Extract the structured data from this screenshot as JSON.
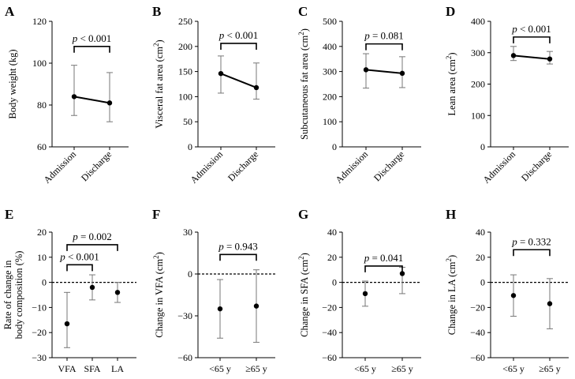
{
  "chart_data": [
    {
      "panel": "A",
      "type": "line",
      "ylabel": "Body weight (kg)",
      "ylabel_sup": "",
      "ylim": [
        60,
        120
      ],
      "yticks": [
        60,
        80,
        100,
        120
      ],
      "categories": [
        "Admission",
        "Discharge"
      ],
      "values": [
        84,
        81
      ],
      "error_low": [
        75,
        72
      ],
      "error_high": [
        99,
        95.5
      ],
      "zero_line": false,
      "comparisons": [
        {
          "from": 0,
          "to": 1,
          "p_label": "p",
          "p_value": " < 0.001",
          "level": 108
        }
      ]
    },
    {
      "panel": "B",
      "type": "line",
      "ylabel": "Visceral fat area (cm",
      "ylabel_sup": "2",
      "ylim": [
        0,
        250
      ],
      "yticks": [
        0,
        50,
        100,
        150,
        200,
        250
      ],
      "categories": [
        "Admission",
        "Discharge"
      ],
      "values": [
        146,
        118
      ],
      "error_low": [
        107,
        95
      ],
      "error_high": [
        181,
        167
      ],
      "zero_line": false,
      "comparisons": [
        {
          "from": 0,
          "to": 1,
          "p_label": "p",
          "p_value": " < 0.001",
          "level": 206
        }
      ]
    },
    {
      "panel": "C",
      "type": "line",
      "ylabel": "Subcutaneous fat area (cm",
      "ylabel_sup": "2",
      "ylim": [
        0,
        500
      ],
      "yticks": [
        0,
        100,
        200,
        300,
        400,
        500
      ],
      "categories": [
        "Admission",
        "Discharge"
      ],
      "values": [
        307,
        293
      ],
      "error_low": [
        234,
        236
      ],
      "error_high": [
        371,
        359
      ],
      "zero_line": false,
      "comparisons": [
        {
          "from": 0,
          "to": 1,
          "p_label": "p",
          "p_value": " = 0.081",
          "level": 410
        }
      ]
    },
    {
      "panel": "D",
      "type": "line",
      "ylabel": "Lean area (cm",
      "ylabel_sup": "2",
      "ylim": [
        0,
        400
      ],
      "yticks": [
        0,
        100,
        200,
        300,
        400
      ],
      "categories": [
        "Admission",
        "Discharge"
      ],
      "values": [
        291,
        280
      ],
      "error_low": [
        275,
        264
      ],
      "error_high": [
        320,
        304
      ],
      "zero_line": false,
      "comparisons": [
        {
          "from": 0,
          "to": 1,
          "p_label": "p",
          "p_value": " < 0.001",
          "level": 350
        }
      ]
    },
    {
      "panel": "E",
      "type": "scatter",
      "ylabel": "Rate of change in",
      "ylabel2": "body composition (%)",
      "ylabel_sup": "",
      "ylim": [
        -30,
        20
      ],
      "yticks": [
        -30,
        -20,
        -10,
        0,
        10,
        20
      ],
      "categories": [
        "VFA",
        "SFA",
        "LA"
      ],
      "values": [
        -16.5,
        -2,
        -4
      ],
      "error_low": [
        -26,
        -7,
        -8
      ],
      "error_high": [
        -4,
        3,
        0
      ],
      "zero_line": true,
      "comparisons": [
        {
          "from": 0,
          "to": 1,
          "p_label": "p",
          "p_value": " < 0.001",
          "level": 7
        },
        {
          "from": 0,
          "to": 2,
          "p_label": "p",
          "p_value": " = 0.002",
          "level": 15
        }
      ]
    },
    {
      "panel": "F",
      "type": "scatter",
      "ylabel": "Change in VFA (cm",
      "ylabel_sup": "2",
      "ylim": [
        -60,
        30
      ],
      "yticks": [
        -60,
        -30,
        0,
        30
      ],
      "categories": [
        "<65 y",
        "≥65 y"
      ],
      "values": [
        -25,
        -23
      ],
      "error_low": [
        -46,
        -49
      ],
      "error_high": [
        -4,
        3
      ],
      "zero_line": true,
      "comparisons": [
        {
          "from": 0,
          "to": 1,
          "p_label": "p",
          "p_value": " = 0.943",
          "level": 14
        }
      ]
    },
    {
      "panel": "G",
      "type": "scatter",
      "ylabel": "Change in SFA (cm",
      "ylabel_sup": "2",
      "ylim": [
        -60,
        40
      ],
      "yticks": [
        -60,
        -40,
        -20,
        0,
        20,
        40
      ],
      "categories": [
        "<65 y",
        "≥65 y"
      ],
      "values": [
        -9,
        7
      ],
      "error_low": [
        -19,
        -9
      ],
      "error_high": [
        1,
        12
      ],
      "zero_line": true,
      "comparisons": [
        {
          "from": 0,
          "to": 1,
          "p_label": "p",
          "p_value": " = 0.041",
          "level": 13
        }
      ]
    },
    {
      "panel": "H",
      "type": "scatter",
      "ylabel": "Change in LA (cm",
      "ylabel_sup": "2",
      "ylim": [
        -60,
        40
      ],
      "yticks": [
        -60,
        -40,
        -20,
        0,
        20,
        40
      ],
      "categories": [
        "<65 y",
        "≥65 y"
      ],
      "values": [
        -10.5,
        -17
      ],
      "error_low": [
        -27,
        -37
      ],
      "error_high": [
        6,
        3
      ],
      "zero_line": true,
      "comparisons": [
        {
          "from": 0,
          "to": 1,
          "p_label": "p",
          "p_value": " = 0.332",
          "level": 26
        }
      ]
    }
  ]
}
